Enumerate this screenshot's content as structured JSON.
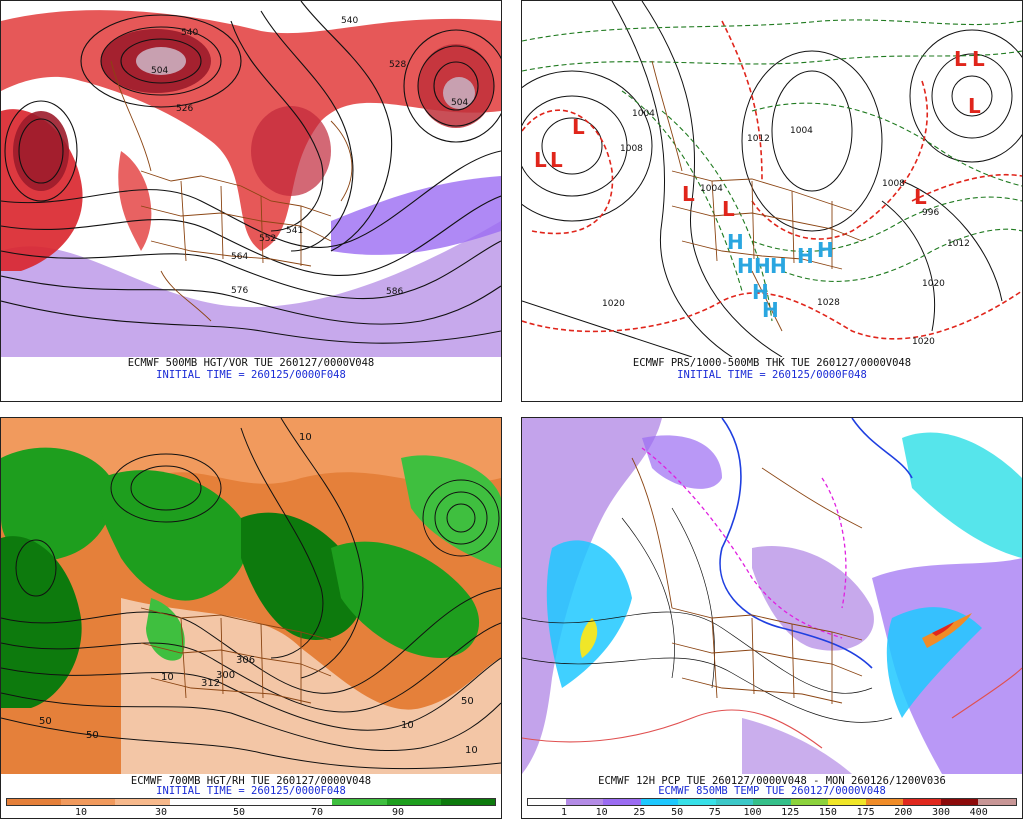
{
  "panels": {
    "top_left": {
      "title": "ECMWF 500MB HGT/VOR TUE 260127/0000V048",
      "subtitle": "INITIAL TIME = 260125/0000F048",
      "contour_labels": [
        "540",
        "540",
        "528",
        "504",
        "526",
        "504",
        "552",
        "541",
        "564",
        "576",
        "586"
      ],
      "colors": {
        "vorticity_red": "#d9242b",
        "vorticity_dark": "#9c1c2b",
        "negative_purple": "#9b6cf2",
        "contour": "#111111",
        "border": "#8b4513"
      }
    },
    "top_right": {
      "title": "ECMWF PRS/1000-500MB THK TUE 260127/0000V048",
      "subtitle": "INITIAL TIME = 260125/0000F048",
      "low_markers": [
        "L",
        "L",
        "L",
        "L",
        "L",
        "L",
        "L",
        "L",
        "L"
      ],
      "high_markers": [
        "H",
        "H",
        "H",
        "H",
        "H",
        "H",
        "H",
        "H"
      ],
      "pressure_labels": [
        "1004",
        "1008",
        "1004",
        "1012",
        "1008",
        "996",
        "1020",
        "1028",
        "1020",
        "1020",
        "1012",
        "1004"
      ],
      "colors": {
        "isobar": "#111111",
        "thickness_green": "#1f7a1f",
        "thickness_red": "#e0251b",
        "low": "#e0251b",
        "high": "#2aa6e0",
        "border": "#8b4513"
      }
    },
    "bottom_left": {
      "title": "ECMWF 700MB HGT/RH TUE 260127/0000V048",
      "subtitle": "INITIAL TIME = 260125/0000F048",
      "contour_labels": [
        "300",
        "306",
        "312",
        "10",
        "10",
        "50",
        "50",
        "10",
        "50",
        "10"
      ],
      "legend": {
        "ticks": [
          "10",
          "30",
          "50",
          "70",
          "90"
        ],
        "colors": [
          "#e5803a",
          "#f19a5d",
          "#f7b98c",
          "#ffffff",
          "#ffffff",
          "#ffffff",
          "#3fbf3f",
          "#1e9e1e",
          "#0d7a0d"
        ]
      }
    },
    "bottom_right": {
      "title": "ECMWF 12H PCP TUE 260127/0000V048 - MON 260126/1200V036",
      "subtitle": "ECMWF 850MB TEMP TUE 260127/0000V048",
      "legend": {
        "ticks": [
          "1",
          "10",
          "25",
          "50",
          "75",
          "100",
          "125",
          "150",
          "175",
          "200",
          "300",
          "400"
        ],
        "colors": [
          "#ffffff",
          "#b48ce6",
          "#9b6cf2",
          "#1ec8ff",
          "#38e0e8",
          "#3cc8c8",
          "#36c08a",
          "#8cd23c",
          "#f0e628",
          "#f08c28",
          "#e0281e",
          "#8c0a0a",
          "#c89696"
        ]
      },
      "colors": {
        "freezing_line": "#1f3fe0",
        "cold_line": "#e020e0",
        "warm_line": "#e05050",
        "border": "#8b4513"
      }
    }
  }
}
